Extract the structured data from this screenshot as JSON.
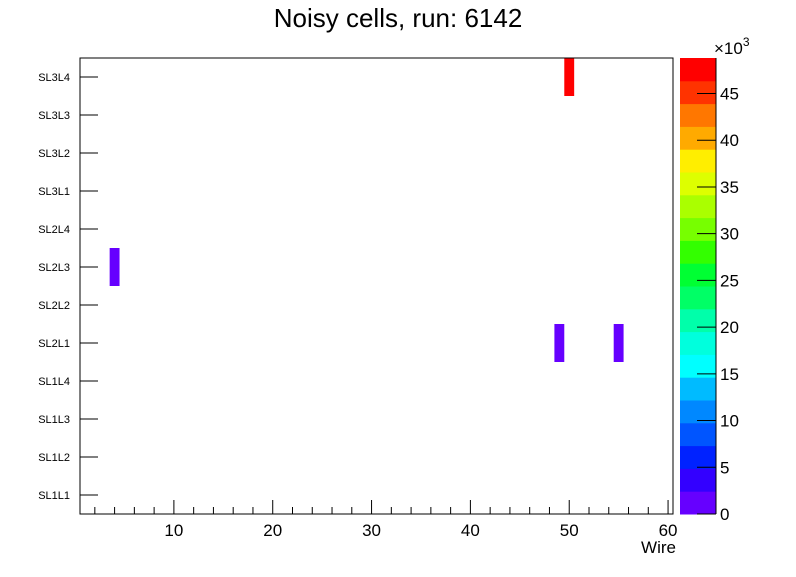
{
  "chart_data": {
    "type": "heatmap",
    "title": "Noisy cells, run: 6142",
    "xlabel": "Wire",
    "ylabel": "",
    "xlim": [
      0.5,
      60.5
    ],
    "x_ticks": [
      10,
      20,
      30,
      40,
      50,
      60
    ],
    "y_categories": [
      "SL1L1",
      "SL1L2",
      "SL1L3",
      "SL1L4",
      "SL2L1",
      "SL2L2",
      "SL2L3",
      "SL2L4",
      "SL3L1",
      "SL3L2",
      "SL3L3",
      "SL3L4"
    ],
    "cells": [
      {
        "wire": 50,
        "layer": "SL3L4",
        "value": 48000
      },
      {
        "wire": 4,
        "layer": "SL2L3",
        "value": 1000
      },
      {
        "wire": 49,
        "layer": "SL2L1",
        "value": 1000
      },
      {
        "wire": 55,
        "layer": "SL2L1",
        "value": 1000
      }
    ],
    "colorbar": {
      "zlim": [
        0,
        48800
      ],
      "multiplier_label": "×10",
      "multiplier_exp": "3",
      "tick_values": [
        0,
        5000,
        10000,
        15000,
        20000,
        25000,
        30000,
        35000,
        40000,
        45000
      ],
      "tick_labels": [
        "0",
        "5",
        "10",
        "15",
        "20",
        "25",
        "30",
        "35",
        "40",
        "45"
      ],
      "palette": [
        "#6600ff",
        "#3300ff",
        "#0022ff",
        "#0055ff",
        "#0088ff",
        "#00bbff",
        "#00ffff",
        "#00ffdd",
        "#00ffaa",
        "#00ff66",
        "#00ff33",
        "#33ff00",
        "#77ff00",
        "#aaff00",
        "#ddff00",
        "#ffee00",
        "#ffaa00",
        "#ff7700",
        "#ff3300",
        "#ff0000"
      ]
    }
  }
}
